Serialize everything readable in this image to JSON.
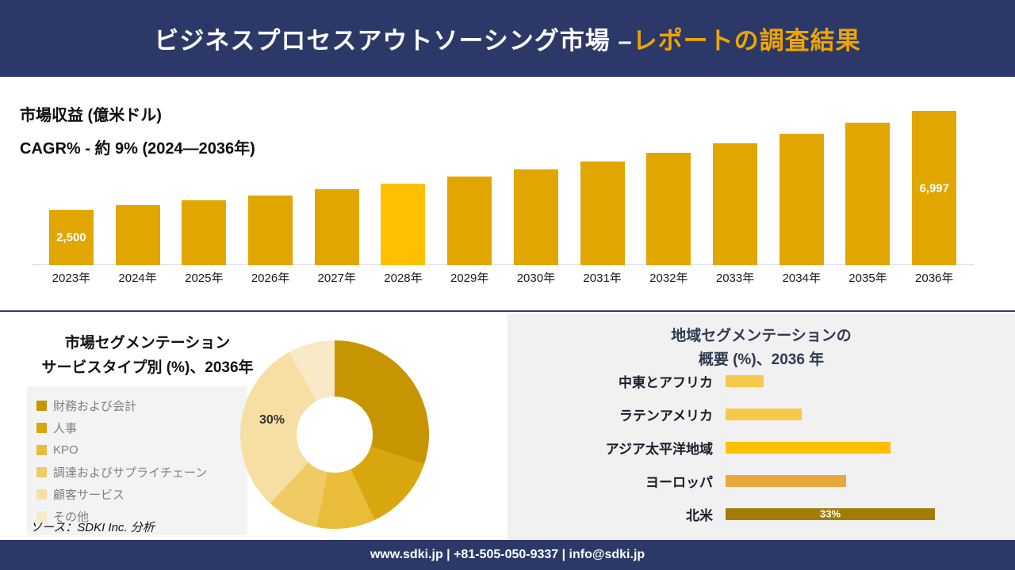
{
  "header": {
    "title_main": "ビジネスプロセスアウトソーシング市場 –",
    "title_accent": "レポートの調査結果"
  },
  "revenue": {
    "metric_label": "市場収益 (億米ドル)",
    "cagr_label": "CAGR% - 約 9% (2024―2036年)"
  },
  "segmentation": {
    "title_line1": "市場セグメンテーション",
    "title_line2": "サービスタイプ別 (%)、2036年",
    "donut_label": "30%",
    "source": "ソース：SDKI Inc. 分析"
  },
  "region": {
    "title_line1": "地域セグメンテーションの",
    "title_line2": "概要 (%)、2036 年"
  },
  "footer": {
    "contact": "www.sdki.jp | +81-505-050-9337 | info@sdki.jp"
  },
  "colors": {
    "banner_navy": "#2C3968",
    "accent_gold": "#EFA500",
    "panel_gray": "#F1F1F1"
  },
  "chart_data": [
    {
      "type": "bar",
      "title": "市場収益 (億米ドル)",
      "subtitle": "CAGR% - 約 9% (2024―2036年)",
      "categories": [
        "2023年",
        "2024年",
        "2025年",
        "2026年",
        "2027年",
        "2028年",
        "2029年",
        "2030年",
        "2031年",
        "2032年",
        "2033年",
        "2034年",
        "2035年",
        "2036年"
      ],
      "values": [
        2500,
        2710,
        2930,
        3170,
        3430,
        3710,
        4020,
        4350,
        4710,
        5100,
        5520,
        5970,
        6460,
        6997
      ],
      "bar_colors": [
        "#E2A600",
        "#E2A600",
        "#E2A600",
        "#E2A600",
        "#E2A600",
        "#FFC000",
        "#E2A600",
        "#E2A600",
        "#E2A600",
        "#E2A600",
        "#E2A600",
        "#E2A600",
        "#E2A600",
        "#E2A600"
      ],
      "value_labels": {
        "0": "2,500",
        "13": "6,997"
      },
      "ylim": [
        0,
        7000
      ],
      "grid": false,
      "legend_position": "none"
    },
    {
      "type": "pie",
      "donut": true,
      "title": "市場セグメンテーション サービスタイプ別 (%)、2036年",
      "segments": [
        {
          "label": "財務および会計",
          "value": 30,
          "color": "#C79502"
        },
        {
          "label": "人事",
          "value": 13,
          "color": "#D8A70E"
        },
        {
          "label": "KPO",
          "value": 10,
          "color": "#E9BD39"
        },
        {
          "label": "調達およびサプライチェーン",
          "value": 9,
          "color": "#F0CB64"
        },
        {
          "label": "顧客サービス",
          "value": 30,
          "color": "#F7DFA4"
        },
        {
          "label": "その他",
          "value": 8,
          "color": "#FAE9C6"
        }
      ],
      "visible_annotation": "30%",
      "legend_position": "left"
    },
    {
      "type": "bar",
      "orientation": "horizontal",
      "title": "地域セグメンテーションの概要 (%)、2036 年",
      "categories": [
        "中東とアフリカ",
        "ラテンアメリカ",
        "アジア太平洋地域",
        "ヨーロッパ",
        "北米"
      ],
      "values": [
        6,
        12,
        26,
        19,
        33
      ],
      "bar_colors": [
        "#F6C84C",
        "#F6C84C",
        "#FFC000",
        "#E8A93B",
        "#A17C07"
      ],
      "value_labels": {
        "4": "33%"
      },
      "xlim": [
        0,
        40
      ],
      "grid": false,
      "legend_position": "none"
    }
  ]
}
